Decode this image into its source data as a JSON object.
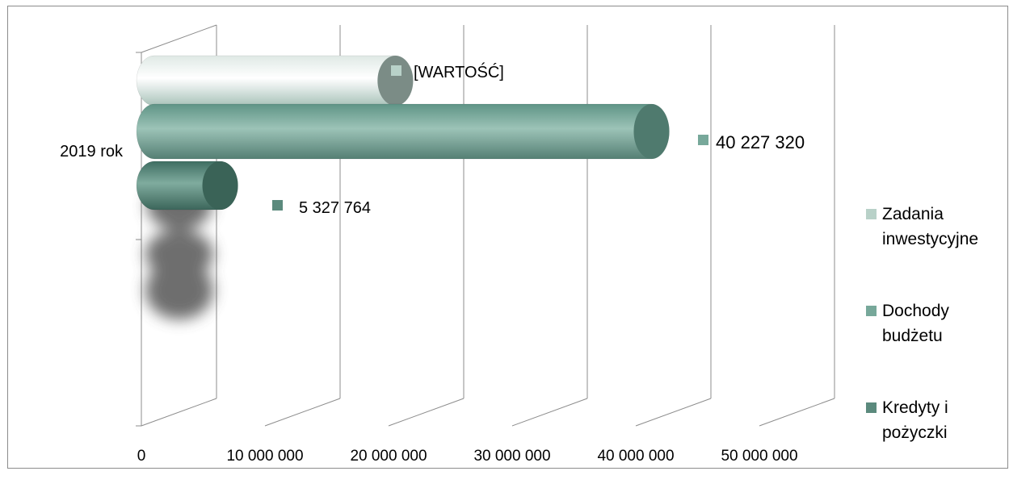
{
  "chart_data": {
    "type": "bar",
    "orientation": "horizontal",
    "style": "3d-cylinder",
    "categories": [
      "2019 rok"
    ],
    "series": [
      {
        "name": "Zadania inwestycyjne",
        "values": [
          19500000
        ],
        "data_label": "[WARTOŚĆ]",
        "color": "#b8d1c8"
      },
      {
        "name": "Dochody budżetu",
        "values": [
          40227320
        ],
        "data_label": "40 227 320",
        "color": "#77a89a"
      },
      {
        "name": "Kredyty i pożyczki",
        "values": [
          5327764
        ],
        "data_label": "5 327 764",
        "color": "#5b8a7d"
      }
    ],
    "x_ticks": [
      0,
      10000000,
      20000000,
      30000000,
      40000000,
      50000000
    ],
    "x_tick_labels": [
      "0",
      "10 000 000",
      "20 000 000",
      "30 000 000",
      "40 000 000",
      "50 000 000"
    ],
    "xlim": [
      0,
      50000000
    ],
    "title": "",
    "xlabel": "",
    "ylabel": "",
    "grid": true,
    "legend_position": "right"
  }
}
